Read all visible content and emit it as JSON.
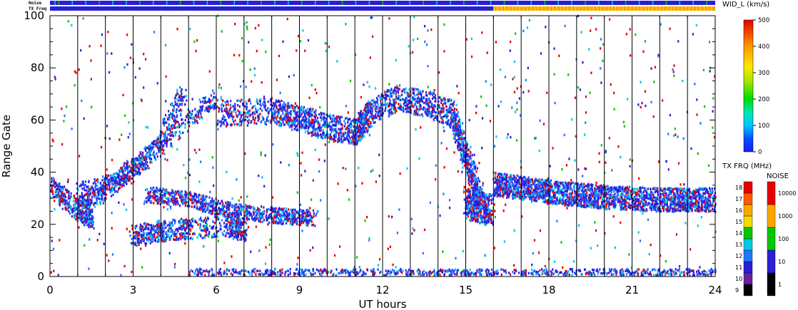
{
  "chart_data": {
    "type": "heatmap",
    "title": "",
    "xlabel": "UT hours",
    "ylabel": "Range Gate",
    "xlim": [
      0,
      24
    ],
    "ylim": [
      0,
      100
    ],
    "x_ticks": [
      "0",
      "3",
      "6",
      "9",
      "12",
      "15",
      "18",
      "21",
      "24"
    ],
    "y_ticks": [
      "0",
      "20",
      "40",
      "60",
      "80",
      "100"
    ],
    "grid": "vertical lines every hour",
    "header_bars": {
      "noise_label": "Noise",
      "txfreq_label": "TX Freq",
      "noise_color": "#2a1fd6",
      "txfreq_before_16": "#2a1fd6",
      "txfreq_after_16": "#f5a400",
      "txfreq_switch_hour": 16
    },
    "width_colorbar": {
      "label": "WID_L (km/s)",
      "ticks": [
        "0",
        "100",
        "200",
        "300",
        "400",
        "500"
      ],
      "min": 0,
      "max": 500
    },
    "freq_colorbar": {
      "label": "TX FRQ (MHz)",
      "ticks": [
        "9",
        "10",
        "11",
        "12",
        "13",
        "14",
        "15",
        "16",
        "17",
        "18"
      ],
      "colors": [
        "#000000",
        "#6a1fa0",
        "#2a1fd6",
        "#1e78ff",
        "#00c8e6",
        "#00c800",
        "#f0dc00",
        "#ffa500",
        "#ff5a00",
        "#e60000"
      ]
    },
    "noise_colorbar": {
      "label": "NOISE",
      "ticks": [
        "1",
        "10",
        "100",
        "1000",
        "10000"
      ],
      "colors": [
        "#000000",
        "#2a1fd6",
        "#00c800",
        "#ffa500",
        "#e60000"
      ]
    },
    "scatter_bands": [
      {
        "name": "diagonal rising band A",
        "x": [
          1.0,
          2.0,
          3.0,
          4.0,
          4.8
        ],
        "y": [
          25,
          33,
          40,
          52,
          70
        ]
      },
      {
        "name": "diagonal rising band B",
        "x": [
          1.0,
          2.5,
          3.5,
          5.0,
          6.0
        ],
        "y": [
          32,
          38,
          45,
          60,
          68
        ]
      },
      {
        "name": "far-range steady band",
        "x": [
          6.0,
          8.0,
          9.0,
          10.0,
          11.0,
          11.5,
          12.5,
          13.5,
          14.5,
          15.0,
          15.5
        ],
        "y": [
          62,
          63,
          60,
          57,
          55,
          62,
          68,
          66,
          62,
          45,
          30
        ]
      },
      {
        "name": "descending band",
        "x": [
          3.5,
          5.0,
          6.5,
          8.0,
          9.5
        ],
        "y": [
          31,
          29,
          25,
          23,
          22
        ]
      },
      {
        "name": "lower cluster",
        "x": [
          3.0,
          4.0,
          5.0,
          6.5,
          7.0
        ],
        "y": [
          15,
          17,
          18,
          19,
          17
        ]
      },
      {
        "name": "post-16h band",
        "x": [
          16.0,
          18.0,
          20.0,
          22.0,
          24.0
        ],
        "y": [
          35,
          32,
          30,
          29,
          29
        ]
      },
      {
        "name": "ground scatter near gate 0",
        "x": [
          5,
          24
        ],
        "y": [
          0,
          4
        ]
      },
      {
        "name": "early band",
        "x": [
          0,
          1,
          1.5
        ],
        "y": [
          34,
          25,
          22
        ]
      }
    ]
  }
}
